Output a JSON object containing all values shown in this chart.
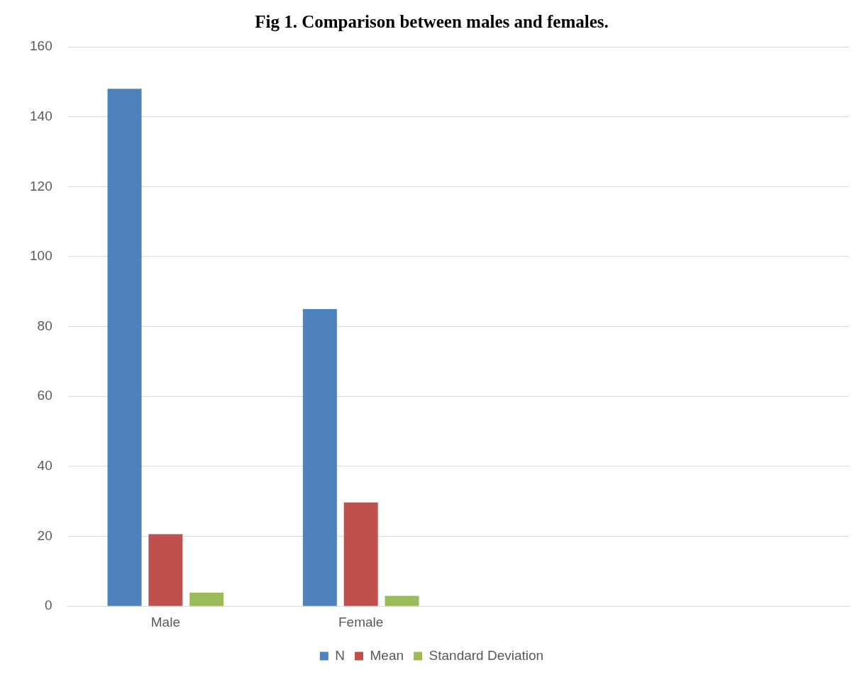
{
  "chart_data": {
    "type": "bar",
    "title": "Fig 1. Comparison between males and females.",
    "categories": [
      "Male",
      "Female",
      null,
      null
    ],
    "series": [
      {
        "name": "N",
        "color": "#4f81bd",
        "values": [
          148,
          85,
          null,
          null
        ]
      },
      {
        "name": "Mean",
        "color": "#c0504d",
        "values": [
          20.6,
          29.7,
          null,
          null
        ]
      },
      {
        "name": "Standard Deviation",
        "color": "#9bbb59",
        "values": [
          3.9,
          3.0,
          null,
          null
        ]
      }
    ],
    "ylim": [
      0,
      160
    ],
    "yticks": [
      0,
      20,
      40,
      60,
      80,
      100,
      120,
      140,
      160
    ],
    "grid": "y",
    "legend": "bottom"
  }
}
